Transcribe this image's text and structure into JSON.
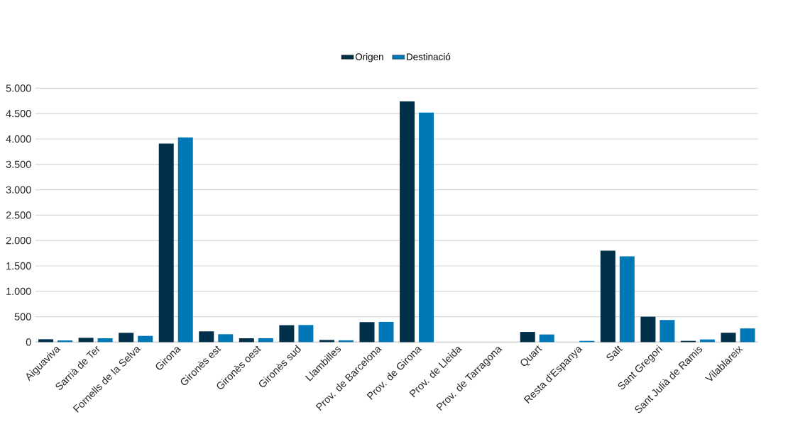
{
  "chart_data": {
    "type": "bar",
    "categories": [
      "Aiguaviva",
      "Sarrià de Ter",
      "Fornells de la Selva",
      "Girona",
      "Gironès est",
      "Gironès oest",
      "Gironès sud",
      "Llambilles",
      "Prov. de Barcelona",
      "Prov. de Girona",
      "Prov. de Lleida",
      "Prov. de Tarragona",
      "Quart",
      "Resta d'Espanya",
      "Salt",
      "Sant Gregori",
      "Sant Julià de Ramis",
      "Vilablareix"
    ],
    "series": [
      {
        "name": "Origen",
        "color": "#00304a",
        "values": [
          56,
          84,
          183,
          3910,
          211,
          75,
          333,
          42,
          393,
          4740,
          0,
          0,
          200,
          0,
          1800,
          500,
          24,
          184
        ]
      },
      {
        "name": "Destinació",
        "color": "#0077b6",
        "values": [
          33,
          75,
          122,
          4030,
          155,
          75,
          336,
          35,
          398,
          4520,
          0,
          0,
          150,
          24,
          1690,
          435,
          52,
          269
        ]
      }
    ],
    "ylim": [
      0,
      5000
    ],
    "yticks": [
      0,
      500,
      {
        "value": 1000,
        "label": "1.000"
      },
      {
        "value": 1500,
        "label": "1.500"
      },
      {
        "value": 2000,
        "label": "2.000"
      },
      {
        "value": 2500,
        "label": "2.500"
      },
      {
        "value": 3000,
        "label": "3.000"
      },
      {
        "value": 3500,
        "label": "3.500"
      },
      {
        "value": 4000,
        "label": "4.000"
      },
      {
        "value": 4500,
        "label": "4.500"
      },
      {
        "value": 5000,
        "label": "5.000"
      }
    ],
    "grid": "y",
    "legend": "top"
  }
}
